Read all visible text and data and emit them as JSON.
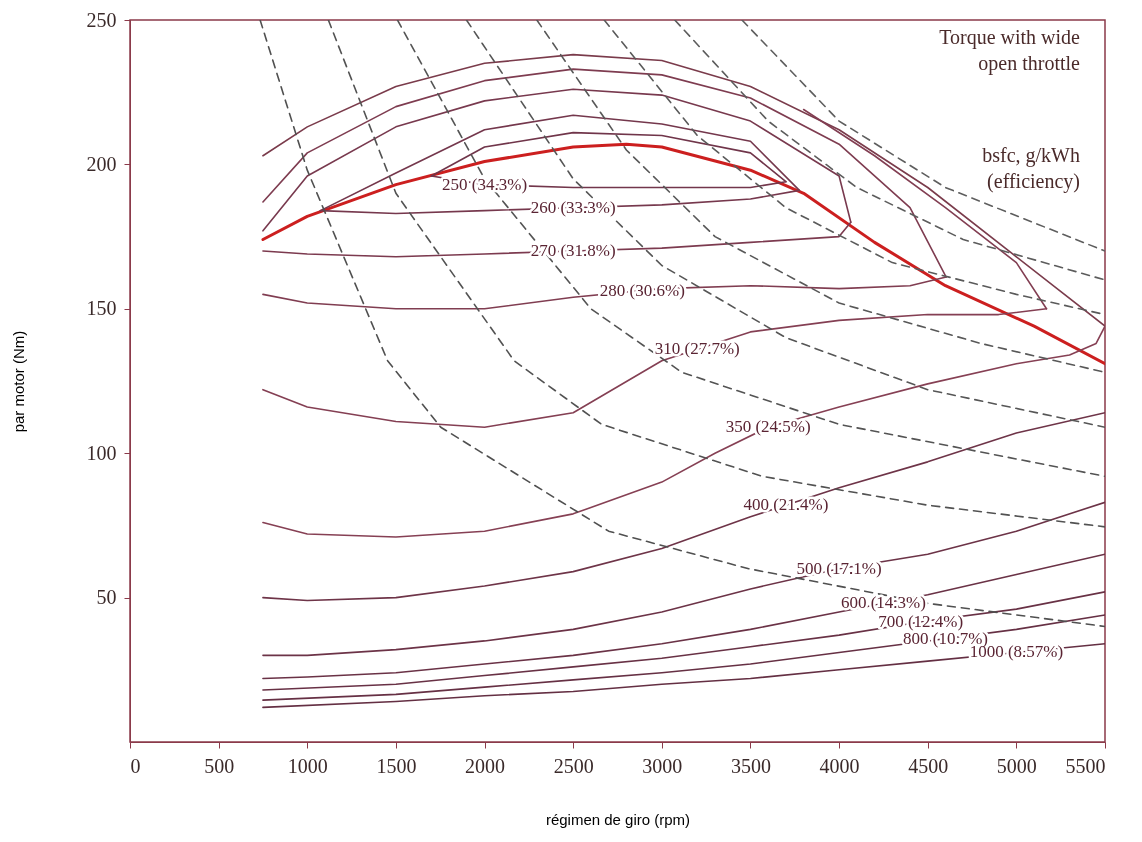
{
  "chart_data": {
    "type": "line",
    "xlabel": "régimen de giro (rpm)",
    "ylabel": "par motor (Nm)",
    "xlim": [
      0,
      5500
    ],
    "ylim": [
      0,
      250
    ],
    "xticks": [
      0,
      500,
      1000,
      1500,
      2000,
      2500,
      3000,
      3500,
      4000,
      4500,
      5000,
      5500
    ],
    "yticks": [
      50,
      100,
      150,
      200,
      250
    ],
    "grid": false,
    "marker": "none",
    "series": [
      {
        "color": "#7a3b4b",
        "x": [
          750,
          1000,
          1500,
          2000,
          2500,
          3000,
          3500,
          4000,
          4500,
          5000,
          5500
        ],
        "values": [
          203,
          213,
          227,
          235,
          238,
          236,
          227,
          212,
          192,
          168,
          144
        ]
      },
      {
        "color": "#cc1f1f",
        "x": [
          750,
          1000,
          1500,
          2000,
          2500,
          2800,
          3000,
          3500,
          3800,
          4200,
          4600,
          5100,
          5500
        ],
        "values": [
          174,
          182,
          193,
          201,
          206,
          207,
          206,
          198,
          190,
          173,
          158,
          144,
          131
        ]
      },
      {
        "color": "#70354a",
        "x": [
          1700,
          2000,
          2500,
          3000,
          3500,
          3700
        ],
        "values": [
          196,
          206,
          211,
          210,
          204,
          194
        ]
      },
      {
        "color": "#72364b",
        "x": [
          1700,
          2000,
          2500,
          3000,
          3500,
          3700
        ],
        "values": [
          196,
          193,
          192,
          192,
          192,
          194
        ]
      },
      {
        "color": "#74374c",
        "x": [
          1074,
          1500,
          2000,
          2500,
          3000,
          3500,
          3776
        ],
        "values": [
          184,
          197,
          212,
          217,
          214,
          208,
          191
        ]
      },
      {
        "color": "#76384d",
        "x": [
          1074,
          1500,
          2000,
          2500,
          3000,
          3500,
          3776
        ],
        "values": [
          184,
          183,
          184,
          185,
          186,
          188,
          191
        ]
      },
      {
        "color": "#78394e",
        "x": [
          750,
          1000,
          1500,
          2000,
          2500,
          3000,
          3500,
          4000,
          4066
        ],
        "values": [
          177,
          196,
          213,
          222,
          226,
          224,
          215,
          196,
          180
        ]
      },
      {
        "color": "#7c3a4f",
        "x": [
          750,
          1000,
          1500,
          2000,
          2500,
          3000,
          3500,
          4000,
          4066
        ],
        "values": [
          170,
          169,
          168,
          169,
          170,
          171,
          173,
          175,
          180
        ]
      },
      {
        "color": "#7e3c50",
        "x": [
          750,
          1000,
          1500,
          2000,
          2500,
          3000,
          3500,
          4000,
          4400,
          4604
        ],
        "values": [
          187,
          204,
          220,
          229,
          233,
          231,
          223,
          207,
          185,
          161
        ]
      },
      {
        "color": "#803d51",
        "x": [
          750,
          1000,
          1500,
          2000,
          2500,
          3000,
          3500,
          4000,
          4400,
          4604
        ],
        "values": [
          155,
          152,
          150,
          150,
          154,
          157,
          158,
          157,
          158,
          161
        ]
      },
      {
        "color": "#823e52",
        "x": [
          3800,
          4200,
          4600,
          5000,
          5170
        ],
        "values": [
          219,
          203,
          185,
          166,
          150
        ]
      },
      {
        "color": "#843f53",
        "x": [
          750,
          1000,
          1500,
          2000,
          2500,
          3000,
          3500,
          4000,
          4500,
          4900,
          5170
        ],
        "values": [
          122,
          116,
          111,
          109,
          114,
          132,
          142,
          146,
          148,
          148,
          150
        ]
      },
      {
        "color": "#864054",
        "x": [
          750,
          1000,
          1500,
          2000,
          2500,
          3000,
          3300,
          3600,
          4000,
          4500,
          5000,
          5300,
          5450,
          5500
        ],
        "values": [
          76,
          72,
          71,
          73,
          79,
          90,
          100,
          109,
          116,
          124,
          131,
          134,
          138,
          144
        ]
      },
      {
        "color": "#6e3448",
        "x": [
          750,
          1000,
          1500,
          2000,
          2500,
          3000,
          3500,
          4000,
          4500,
          5000,
          5500
        ],
        "values": [
          50,
          49,
          50,
          54,
          59,
          67,
          78,
          88,
          97,
          107,
          114
        ]
      },
      {
        "color": "#6c3347",
        "x": [
          750,
          1000,
          1500,
          2000,
          2500,
          3000,
          3500,
          4000,
          4500,
          5000,
          5500
        ],
        "values": [
          30,
          30,
          32,
          35,
          39,
          45,
          53,
          60,
          65,
          73,
          83
        ]
      },
      {
        "color": "#6a3246",
        "x": [
          750,
          1000,
          1500,
          2000,
          2500,
          3000,
          3500,
          4000,
          4500,
          5000,
          5500
        ],
        "values": [
          22,
          22.5,
          24,
          27,
          30,
          34,
          39,
          45,
          51,
          58,
          65
        ]
      },
      {
        "color": "#683145",
        "x": [
          750,
          1500,
          2000,
          2500,
          3000,
          3500,
          4000,
          4500,
          5000,
          5500
        ],
        "values": [
          18,
          20,
          23,
          26,
          29,
          33,
          37,
          42,
          46,
          52
        ]
      },
      {
        "color": "#663044",
        "x": [
          750,
          1500,
          2000,
          2500,
          3000,
          3500,
          4000,
          4500,
          5000,
          5500
        ],
        "values": [
          14.5,
          16.5,
          19,
          21.5,
          24,
          27,
          31,
          35,
          39,
          44
        ]
      },
      {
        "color": "#642f43",
        "x": [
          750,
          1500,
          2000,
          2500,
          3000,
          3500,
          4000,
          4500,
          5000,
          5500
        ],
        "values": [
          12,
          14,
          16,
          17.5,
          20,
          22,
          25,
          28,
          31,
          34
        ]
      },
      {
        "color": "#505050",
        "line_style": "dashed",
        "x": [
          734,
          1000,
          1453,
          1753,
          2700,
          3490,
          4500,
          5500
        ],
        "values": [
          250,
          198,
          132,
          109,
          73,
          60,
          48,
          40
        ]
      },
      {
        "color": "#525252",
        "line_style": "dashed",
        "x": [
          1119,
          1500,
          2167,
          2660,
          3566,
          4500,
          5500
        ],
        "values": [
          250,
          190,
          132,
          110,
          92,
          82,
          74.5
        ]
      },
      {
        "color": "#545454",
        "line_style": "dashed",
        "x": [
          1509,
          2000,
          2600,
          3113,
          4000,
          5500
        ],
        "values": [
          250,
          195,
          150,
          128,
          110,
          92
        ]
      },
      {
        "color": "#565656",
        "line_style": "dashed",
        "x": [
          1898,
          2500,
          3000,
          3700,
          4500,
          5500
        ],
        "values": [
          250,
          195,
          165,
          140,
          122,
          109
        ]
      },
      {
        "color": "#585858",
        "line_style": "dashed",
        "x": [
          2295,
          2800,
          3300,
          4000,
          4800,
          5500
        ],
        "values": [
          250,
          205,
          175,
          152,
          138,
          128
        ]
      },
      {
        "color": "#5a5a5a",
        "line_style": "dashed",
        "x": [
          2675,
          3200,
          3700,
          4300,
          5000,
          5500
        ],
        "values": [
          250,
          210,
          185,
          166,
          155,
          148
        ]
      },
      {
        "color": "#5c5c5c",
        "line_style": "dashed",
        "x": [
          3073,
          3600,
          4100,
          4700,
          5500
        ],
        "values": [
          250,
          215,
          192,
          174,
          160
        ]
      },
      {
        "color": "#5e5e5e",
        "line_style": "dashed",
        "x": [
          3452,
          4000,
          4600,
          5500
        ],
        "values": [
          250,
          215,
          192,
          170
        ]
      }
    ],
    "annotations": [
      "Torque with wide\nopen throttle",
      "bsfc, g/kWh\n(efficiency)",
      {
        "text": "250 (34.3%)",
        "x": 2000,
        "y": 193
      },
      {
        "text": "260 (33.3%)",
        "x": 2500,
        "y": 185
      },
      {
        "text": "270 (31.8%)",
        "x": 2500,
        "y": 170
      },
      {
        "text": "280 (30.6%)",
        "x": 2890,
        "y": 156.3
      },
      {
        "text": "310 (27.7%)",
        "x": 3200,
        "y": 136
      },
      {
        "text": "350 (24.5%)",
        "x": 3600,
        "y": 109
      },
      {
        "text": "400 (21.4%)",
        "x": 3700,
        "y": 82
      },
      {
        "text": "500 (17.1%)",
        "x": 4000,
        "y": 60
      },
      {
        "text": "600 (14.3%)",
        "x": 4250,
        "y": 48
      },
      {
        "text": "700 (12.4%)",
        "x": 4460,
        "y": 41.6
      },
      {
        "text": "800 (10.7%)",
        "x": 4600,
        "y": 35.8
      },
      {
        "text": "1000 (8.57%)",
        "x": 5000,
        "y": 31
      }
    ]
  }
}
